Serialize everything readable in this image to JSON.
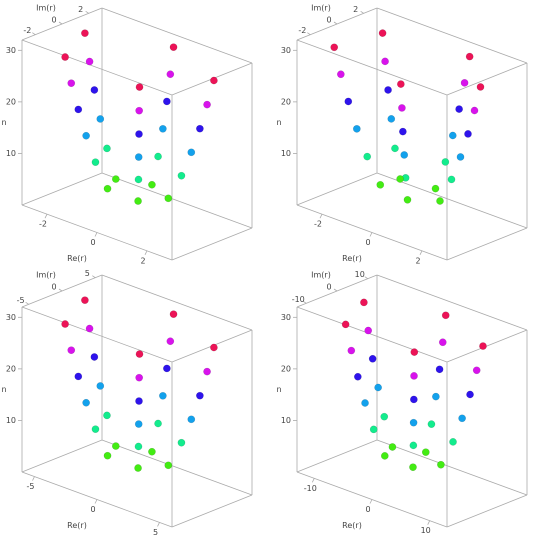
{
  "chart_data": [
    {
      "type": "scatter3d",
      "xlabel": "Re(r)",
      "ylabel": "Im(r)",
      "zlabel": "n",
      "colormap": "hue-by-z",
      "xlim": [
        -3,
        3
      ],
      "ylim": [
        -3,
        3
      ],
      "zlim": [
        0,
        32
      ],
      "xticks": [
        -2,
        0,
        2
      ],
      "yticks": [
        -2,
        0,
        2
      ],
      "zticks": [
        10,
        20,
        30
      ],
      "x": [
        2.58,
        2.35,
        2.11,
        1.82,
        1.49,
        1.05,
        0,
        0,
        0,
        0,
        0,
        0,
        -2.58,
        -2.35,
        -2.11,
        -1.82,
        -1.49,
        -1.05,
        -1.75,
        -1.6,
        -1.43,
        -1.24,
        -1.01,
        -0.72,
        1.37,
        1.25,
        1.12,
        0.97,
        0.79,
        0.56
      ],
      "y": [
        0.93,
        0.85,
        0.76,
        0.66,
        0.54,
        0.38,
        2.74,
        2.5,
        2.24,
        1.94,
        1.58,
        1.12,
        0.93,
        0.85,
        0.76,
        0.66,
        0.54,
        0.38,
        -2.11,
        -1.93,
        -1.72,
        -1.49,
        -1.22,
        -0.86,
        -2.38,
        -2.18,
        -1.95,
        -1.69,
        -1.37,
        -0.97
      ],
      "z": [
        30,
        25,
        20,
        15,
        10,
        5,
        30,
        25,
        20,
        15,
        10,
        5,
        30,
        25,
        20,
        15,
        10,
        5,
        30,
        25,
        20,
        15,
        10,
        5,
        30,
        25,
        20,
        15,
        10,
        5
      ]
    },
    {
      "type": "scatter3d",
      "xlabel": "Re(r)",
      "ylabel": "Im(r)",
      "zlabel": "n",
      "colormap": "hue-by-z",
      "xlim": [
        -3,
        3
      ],
      "ylim": [
        -3,
        3
      ],
      "zlim": [
        0,
        32
      ],
      "xticks": [
        -2,
        0,
        2
      ],
      "yticks": [
        -2,
        0,
        2
      ],
      "zticks": [
        10,
        20,
        30
      ],
      "x": [
        0.93,
        0.85,
        0.76,
        0.66,
        0.54,
        0.38,
        2.74,
        2.5,
        2.24,
        1.94,
        1.58,
        1.12,
        0.93,
        0.85,
        0.76,
        0.66,
        0.54,
        0.38,
        -2.11,
        -1.93,
        -1.72,
        -1.49,
        -1.22,
        -0.86,
        -2.38,
        -2.18,
        -1.95,
        -1.69,
        -1.37,
        -0.97
      ],
      "y": [
        -2.58,
        -2.35,
        -2.11,
        -1.82,
        -1.49,
        -1.05,
        0,
        0,
        0,
        0,
        0,
        0,
        2.58,
        2.35,
        2.11,
        1.82,
        1.49,
        1.05,
        1.75,
        1.6,
        1.43,
        1.24,
        1.01,
        0.72,
        -1.37,
        -1.25,
        -1.12,
        -0.97,
        -0.79,
        -0.56
      ],
      "z": [
        30,
        25,
        20,
        15,
        10,
        5,
        30,
        25,
        20,
        15,
        10,
        5,
        30,
        25,
        20,
        15,
        10,
        5,
        30,
        25,
        20,
        15,
        10,
        5,
        30,
        25,
        20,
        15,
        10,
        5
      ]
    },
    {
      "type": "scatter3d",
      "xlabel": "Re(r)",
      "ylabel": "Im(r)",
      "zlabel": "n",
      "colormap": "hue-by-z",
      "xlim": [
        -6,
        6
      ],
      "ylim": [
        -6,
        6
      ],
      "zlim": [
        0,
        32
      ],
      "xticks": [
        -5,
        0,
        5
      ],
      "yticks": [
        -5,
        0,
        5
      ],
      "zticks": [
        10,
        20,
        30
      ],
      "x": [
        5.16,
        4.7,
        4.22,
        3.64,
        2.98,
        2.1,
        0,
        0,
        0,
        0,
        0,
        0,
        -5.16,
        -4.7,
        -4.22,
        -3.64,
        -2.98,
        -2.1,
        -3.5,
        -3.2,
        -2.86,
        -2.48,
        -2.02,
        -1.44,
        2.74,
        2.5,
        2.24,
        1.94,
        1.58,
        1.12
      ],
      "y": [
        1.86,
        1.7,
        1.52,
        1.32,
        1.08,
        0.76,
        5.48,
        5,
        4.48,
        3.88,
        3.16,
        2.24,
        1.86,
        1.7,
        1.52,
        1.32,
        1.08,
        0.76,
        -4.22,
        -3.86,
        -3.44,
        -2.98,
        -2.44,
        -1.72,
        -4.76,
        -4.36,
        -3.9,
        -3.38,
        -2.74,
        -1.94
      ],
      "z": [
        30,
        25,
        20,
        15,
        10,
        5,
        30,
        25,
        20,
        15,
        10,
        5,
        30,
        25,
        20,
        15,
        10,
        5,
        30,
        25,
        20,
        15,
        10,
        5,
        30,
        25,
        20,
        15,
        10,
        5
      ]
    },
    {
      "type": "scatter3d",
      "xlabel": "Re(r)",
      "ylabel": "Im(r)",
      "zlabel": "n",
      "colormap": "hue-by-z",
      "xlim": [
        -13,
        13
      ],
      "ylim": [
        -13,
        13
      ],
      "zlim": [
        0,
        32
      ],
      "xticks": [
        -10,
        0,
        10
      ],
      "yticks": [
        -10,
        0,
        10
      ],
      "zticks": [
        10,
        20,
        30
      ],
      "x": [
        10.32,
        9.4,
        8.44,
        7.28,
        5.96,
        4.2,
        0,
        0,
        0,
        0,
        0,
        0,
        -10.32,
        -9.4,
        -8.44,
        -7.28,
        -5.96,
        -4.2,
        -7,
        -6.4,
        -5.72,
        -4.96,
        -4.04,
        -2.88,
        5.48,
        5,
        4.48,
        3.88,
        3.16,
        2.24
      ],
      "y": [
        3.72,
        3.4,
        3.04,
        2.64,
        2.16,
        1.52,
        10.96,
        10,
        8.96,
        7.76,
        6.32,
        4.48,
        3.72,
        3.4,
        3.04,
        2.64,
        2.16,
        1.52,
        -8.44,
        -7.72,
        -6.88,
        -5.96,
        -4.88,
        -3.44,
        -9.52,
        -8.72,
        -7.8,
        -6.76,
        -5.48,
        -3.88
      ],
      "z": [
        30,
        25,
        20,
        15,
        10,
        5,
        30,
        25,
        20,
        15,
        10,
        5,
        30,
        25,
        20,
        15,
        10,
        5,
        30,
        25,
        20,
        15,
        10,
        5,
        30,
        25,
        20,
        15,
        10,
        5
      ]
    }
  ]
}
